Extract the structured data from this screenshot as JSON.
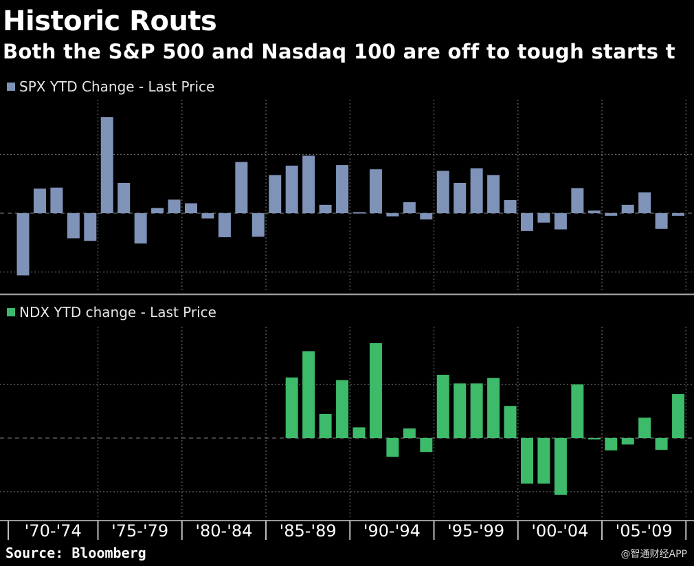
{
  "title": "Historic Routs",
  "subtitle": "Both the S&P 500 and Nasdaq 100 are off to tough starts t",
  "source": "Source: Bloomberg",
  "watermark": "@智通财经APP",
  "colors": {
    "spx": "#7f93b8",
    "ndx": "#3dba6a",
    "grid": "#6b6b6b",
    "background": "#000000"
  },
  "chart_data": [
    {
      "type": "bar",
      "name": "SPX",
      "legend": "SPX YTD Change - Last Price",
      "categories": [
        "1970",
        "1971",
        "1972",
        "1973",
        "1974",
        "1975",
        "1976",
        "1977",
        "1978",
        "1979",
        "1980",
        "1981",
        "1982",
        "1983",
        "1984",
        "1985",
        "1986",
        "1987",
        "1988",
        "1989",
        "1990",
        "1991",
        "1992",
        "1993",
        "1994",
        "1995",
        "1996",
        "1997",
        "1998",
        "1999",
        "2000",
        "2001",
        "2002",
        "2003",
        "2004",
        "2005",
        "2006",
        "2007",
        "2008",
        "2009",
        "2010"
      ],
      "values": [
        -11.9,
        4.7,
        4.9,
        -4.8,
        -5.3,
        18.4,
        5.8,
        -5.8,
        1.0,
        2.6,
        1.9,
        -1.0,
        -4.6,
        9.8,
        -4.5,
        7.3,
        9.1,
        11.0,
        1.6,
        9.2,
        0.2,
        8.4,
        -0.6,
        2.1,
        -1.2,
        8.1,
        5.8,
        8.6,
        7.3,
        2.5,
        -3.4,
        -1.8,
        -3.1,
        4.8,
        0.5,
        -0.5,
        1.6,
        4.0,
        -3.0,
        -0.5,
        0
      ],
      "ylim": [
        -15,
        21
      ],
      "gridlines": [
        -11.25,
        0,
        11.25
      ],
      "legend_position": "top-left"
    },
    {
      "type": "bar",
      "name": "NDX",
      "legend": "NDX YTD change - Last Price",
      "categories": [
        "1970",
        "1971",
        "1972",
        "1973",
        "1974",
        "1975",
        "1976",
        "1977",
        "1978",
        "1979",
        "1980",
        "1981",
        "1982",
        "1983",
        "1984",
        "1985",
        "1986",
        "1987",
        "1988",
        "1989",
        "1990",
        "1991",
        "1992",
        "1993",
        "1994",
        "1995",
        "1996",
        "1997",
        "1998",
        "1999",
        "2000",
        "2001",
        "2002",
        "2003",
        "2004",
        "2005",
        "2006",
        "2007",
        "2008",
        "2009",
        "2010"
      ],
      "values": [
        null,
        null,
        null,
        null,
        null,
        null,
        null,
        null,
        null,
        null,
        null,
        null,
        null,
        null,
        null,
        null,
        null,
        null,
        null,
        null,
        null,
        null,
        null,
        null,
        null,
        null,
        null,
        null,
        null,
        null,
        null,
        null,
        null,
        null,
        null,
        null,
        null,
        null,
        null,
        null,
        null
      ],
      "values_from_1986": [
        11.3,
        16.2,
        4.5,
        10.8,
        2.0,
        17.7,
        -3.5,
        1.8,
        -2.6,
        11.8,
        10.2,
        10.2,
        11.2,
        6.0,
        -8.5,
        -8.5,
        -10.6,
        10.0,
        -0.1,
        -2.3,
        -1.2,
        3.8,
        -2.2,
        8.2
      ],
      "ylim": [
        -13,
        19
      ],
      "gridlines": [
        -10,
        0,
        10
      ],
      "legend_position": "top-left"
    }
  ],
  "x_axis": {
    "labels": [
      "'70-'74",
      "'75-'79",
      "'80-'84",
      "'85-'89",
      "'90-'94",
      "'95-'99",
      "'00-'04",
      "'05-'09"
    ]
  }
}
